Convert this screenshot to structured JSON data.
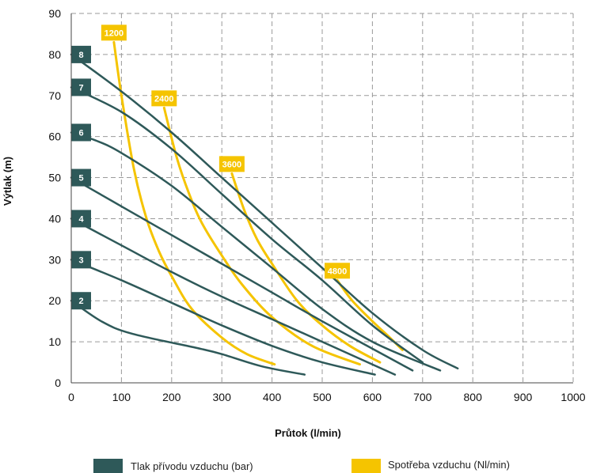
{
  "chart_data": {
    "type": "line",
    "xlabel": "Průtok (l/min)",
    "ylabel": "Výtlak (m)",
    "xlim": [
      0,
      1000
    ],
    "ylim": [
      0,
      90
    ],
    "xticks": [
      0,
      100,
      200,
      300,
      400,
      500,
      600,
      700,
      800,
      900,
      1000
    ],
    "yticks": [
      0,
      10,
      20,
      30,
      40,
      50,
      60,
      70,
      80,
      90
    ],
    "grid": true,
    "legend_position": "bottom",
    "pressure_color": "#2e5959",
    "consumption_color": "#f5c400",
    "legend": [
      {
        "label": "Tlak přívodu vzduchu (bar)",
        "color": "#2e5959"
      },
      {
        "label": "Spotřeba vzduchu (Nl/min)",
        "color": "#f5c400"
      }
    ],
    "pressure_series": [
      {
        "name": "2",
        "points": [
          [
            0,
            20
          ],
          [
            60,
            15
          ],
          [
            120,
            12
          ],
          [
            250,
            8.5
          ],
          [
            300,
            7
          ],
          [
            380,
            4
          ],
          [
            465,
            2
          ]
        ]
      },
      {
        "name": "3",
        "points": [
          [
            0,
            30
          ],
          [
            100,
            25
          ],
          [
            200,
            19.5
          ],
          [
            300,
            14
          ],
          [
            400,
            9
          ],
          [
            500,
            5
          ],
          [
            605,
            2
          ]
        ]
      },
      {
        "name": "4",
        "points": [
          [
            0,
            40
          ],
          [
            100,
            33.5
          ],
          [
            200,
            27
          ],
          [
            300,
            21
          ],
          [
            400,
            15.5
          ],
          [
            500,
            10
          ],
          [
            645,
            2
          ]
        ]
      },
      {
        "name": "5",
        "points": [
          [
            0,
            50
          ],
          [
            100,
            43
          ],
          [
            200,
            36
          ],
          [
            300,
            29
          ],
          [
            400,
            22
          ],
          [
            500,
            15
          ],
          [
            680,
            3
          ]
        ]
      },
      {
        "name": "6",
        "points": [
          [
            0,
            61
          ],
          [
            50,
            59
          ],
          [
            100,
            56
          ],
          [
            200,
            48
          ],
          [
            300,
            38
          ],
          [
            400,
            28
          ],
          [
            500,
            18
          ],
          [
            600,
            10
          ],
          [
            735,
            3
          ]
        ]
      },
      {
        "name": "7",
        "points": [
          [
            0,
            72
          ],
          [
            100,
            66
          ],
          [
            200,
            57
          ],
          [
            300,
            46
          ],
          [
            400,
            35
          ],
          [
            500,
            25
          ],
          [
            600,
            14
          ],
          [
            700,
            5
          ]
        ]
      },
      {
        "name": "8",
        "points": [
          [
            0,
            80
          ],
          [
            100,
            71
          ],
          [
            200,
            61
          ],
          [
            300,
            50
          ],
          [
            400,
            39
          ],
          [
            500,
            28
          ],
          [
            600,
            17
          ],
          [
            700,
            8
          ],
          [
            770,
            3.5
          ]
        ]
      }
    ],
    "consumption_series": [
      {
        "name": "1200",
        "points": [
          [
            85,
            83
          ],
          [
            100,
            70
          ],
          [
            125,
            52
          ],
          [
            150,
            40
          ],
          [
            175,
            32
          ],
          [
            200,
            26
          ],
          [
            240,
            18
          ],
          [
            300,
            11
          ],
          [
            350,
            7
          ],
          [
            405,
            4.5
          ]
        ]
      },
      {
        "name": "2400",
        "points": [
          [
            185,
            67
          ],
          [
            210,
            55
          ],
          [
            235,
            46
          ],
          [
            260,
            39
          ],
          [
            300,
            31
          ],
          [
            340,
            24
          ],
          [
            400,
            16
          ],
          [
            480,
            9
          ],
          [
            575,
            4.5
          ]
        ]
      },
      {
        "name": "3600",
        "points": [
          [
            320,
            51
          ],
          [
            345,
            42
          ],
          [
            370,
            35
          ],
          [
            400,
            29
          ],
          [
            450,
            20
          ],
          [
            500,
            14
          ],
          [
            555,
            9
          ],
          [
            615,
            5
          ]
        ]
      },
      {
        "name": "4800",
        "points": [
          [
            530,
            25
          ],
          [
            560,
            20
          ],
          [
            600,
            15
          ],
          [
            635,
            11
          ],
          [
            660,
            8
          ]
        ]
      }
    ]
  }
}
